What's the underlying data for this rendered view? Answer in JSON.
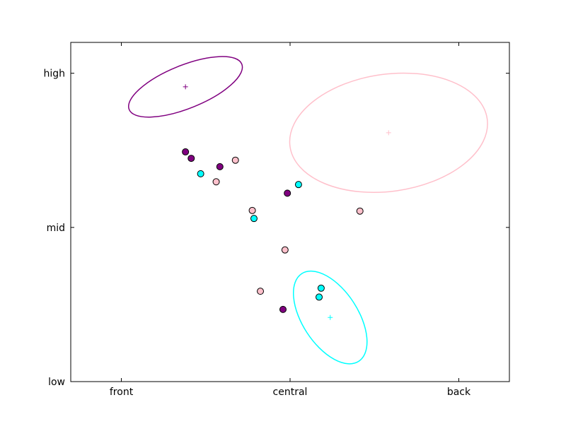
{
  "chart_data": {
    "type": "scatter",
    "title": "",
    "xlabel": "",
    "ylabel": "",
    "xlim": [
      -0.15,
      1.15
    ],
    "ylim": [
      0,
      1.1
    ],
    "grid": false,
    "x_ticks": [
      {
        "value": 0,
        "label": "front"
      },
      {
        "value": 0.5,
        "label": "central"
      },
      {
        "value": 1,
        "label": "back"
      }
    ],
    "y_ticks": [
      {
        "value": 0,
        "label": "low"
      },
      {
        "value": 0.5,
        "label": "mid"
      },
      {
        "value": 1,
        "label": "high"
      }
    ],
    "series": [
      {
        "color": "#800080",
        "points": [
          [
            0.19,
            0.745
          ],
          [
            0.207,
            0.724
          ],
          [
            0.292,
            0.697
          ],
          [
            0.492,
            0.611
          ],
          [
            0.479,
            0.234
          ]
        ],
        "mean": [
          0.19,
          0.956
        ],
        "ellipse": {
          "rx": 0.18,
          "ry": 0.07,
          "angle_deg": -22
        }
      },
      {
        "color": "#00ffff",
        "points": [
          [
            0.235,
            0.674
          ],
          [
            0.525,
            0.639
          ],
          [
            0.393,
            0.529
          ],
          [
            0.592,
            0.303
          ],
          [
            0.586,
            0.274
          ]
        ],
        "mean": [
          0.619,
          0.208
        ],
        "ellipse": {
          "rx": 0.155,
          "ry": 0.09,
          "angle_deg": 57
        }
      },
      {
        "color": "#ffc0cb",
        "points": [
          [
            0.338,
            0.718
          ],
          [
            0.281,
            0.648
          ],
          [
            0.388,
            0.555
          ],
          [
            0.707,
            0.553
          ],
          [
            0.485,
            0.427
          ],
          [
            0.412,
            0.293
          ]
        ],
        "mean": [
          0.792,
          0.807
        ],
        "ellipse": {
          "rx": 0.295,
          "ry": 0.19,
          "angle_deg": -8
        }
      }
    ]
  }
}
